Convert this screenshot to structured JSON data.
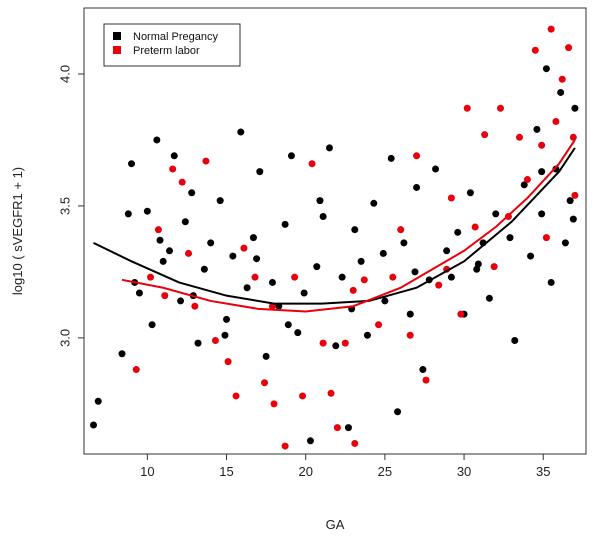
{
  "chart_data": {
    "type": "scatter",
    "title": "",
    "xlabel": "GA",
    "ylabel": "log10 ( sVEGFR1  + 1)",
    "xlim": [
      6,
      37.7
    ],
    "ylim": [
      2.56,
      4.25
    ],
    "x_ticks": [
      10,
      15,
      20,
      25,
      30,
      35
    ],
    "y_ticks": [
      3.0,
      3.5,
      4.0
    ],
    "x_tick_labels": [
      "10",
      "15",
      "20",
      "25",
      "30",
      "35"
    ],
    "y_tick_labels": [
      "3.0",
      "3.5",
      "4.0"
    ],
    "grid": false,
    "legend_position": "top-left",
    "series": [
      {
        "name": "Normal Pregancy",
        "color": "#000000",
        "points": [
          [
            6.6,
            2.67
          ],
          [
            6.9,
            2.76
          ],
          [
            8.4,
            2.94
          ],
          [
            8.8,
            3.47
          ],
          [
            9.0,
            3.66
          ],
          [
            9.5,
            3.17
          ],
          [
            10.0,
            3.48
          ],
          [
            10.3,
            3.05
          ],
          [
            10.6,
            3.75
          ],
          [
            11.0,
            3.29
          ],
          [
            11.4,
            3.33
          ],
          [
            11.7,
            3.69
          ],
          [
            12.1,
            3.14
          ],
          [
            12.4,
            3.44
          ],
          [
            12.8,
            3.55
          ],
          [
            13.2,
            2.98
          ],
          [
            13.6,
            3.26
          ],
          [
            14.0,
            3.36
          ],
          [
            14.6,
            3.52
          ],
          [
            15.0,
            3.07
          ],
          [
            15.4,
            3.31
          ],
          [
            15.9,
            3.78
          ],
          [
            16.3,
            3.19
          ],
          [
            16.7,
            3.38
          ],
          [
            17.1,
            3.63
          ],
          [
            17.5,
            2.93
          ],
          [
            17.9,
            3.21
          ],
          [
            18.3,
            3.12
          ],
          [
            18.7,
            3.43
          ],
          [
            19.1,
            3.69
          ],
          [
            19.5,
            3.02
          ],
          [
            19.9,
            3.17
          ],
          [
            20.3,
            2.61
          ],
          [
            20.7,
            3.27
          ],
          [
            21.1,
            3.46
          ],
          [
            21.5,
            3.72
          ],
          [
            21.9,
            2.97
          ],
          [
            22.3,
            3.23
          ],
          [
            22.7,
            2.66
          ],
          [
            23.1,
            3.41
          ],
          [
            23.5,
            3.29
          ],
          [
            23.9,
            3.01
          ],
          [
            24.3,
            3.51
          ],
          [
            25.0,
            3.14
          ],
          [
            25.4,
            3.68
          ],
          [
            25.8,
            2.72
          ],
          [
            26.2,
            3.36
          ],
          [
            26.6,
            3.09
          ],
          [
            27.0,
            3.57
          ],
          [
            27.4,
            2.88
          ],
          [
            27.8,
            3.22
          ],
          [
            28.2,
            3.64
          ],
          [
            29.2,
            3.23
          ],
          [
            29.6,
            3.4
          ],
          [
            30.0,
            3.09
          ],
          [
            30.4,
            3.55
          ],
          [
            30.8,
            3.26
          ],
          [
            31.2,
            3.36
          ],
          [
            31.6,
            3.15
          ],
          [
            32.0,
            3.47
          ],
          [
            33.2,
            2.99
          ],
          [
            33.8,
            3.58
          ],
          [
            34.2,
            3.31
          ],
          [
            34.6,
            3.79
          ],
          [
            34.9,
            3.47
          ],
          [
            35.2,
            4.02
          ],
          [
            35.5,
            3.21
          ],
          [
            35.8,
            3.64
          ],
          [
            36.1,
            3.93
          ],
          [
            36.4,
            3.36
          ],
          [
            36.7,
            3.52
          ],
          [
            37.0,
            3.87
          ],
          [
            9.2,
            3.21
          ],
          [
            10.8,
            3.37
          ],
          [
            12.9,
            3.16
          ],
          [
            14.9,
            3.01
          ],
          [
            16.9,
            3.3
          ],
          [
            18.9,
            3.05
          ],
          [
            20.9,
            3.52
          ],
          [
            22.9,
            3.11
          ],
          [
            24.9,
            3.32
          ],
          [
            26.9,
            3.25
          ],
          [
            28.9,
            3.33
          ],
          [
            30.9,
            3.28
          ],
          [
            32.9,
            3.38
          ],
          [
            34.9,
            3.63
          ],
          [
            36.9,
            3.45
          ]
        ]
      },
      {
        "name": "Preterm labor",
        "color": "#e8000b",
        "points": [
          [
            9.3,
            2.88
          ],
          [
            10.2,
            3.23
          ],
          [
            11.1,
            3.16
          ],
          [
            11.6,
            3.64
          ],
          [
            12.2,
            3.59
          ],
          [
            13.0,
            3.12
          ],
          [
            13.7,
            3.67
          ],
          [
            14.3,
            2.99
          ],
          [
            15.1,
            2.91
          ],
          [
            15.6,
            2.78
          ],
          [
            16.1,
            3.34
          ],
          [
            16.8,
            3.23
          ],
          [
            17.4,
            2.83
          ],
          [
            18.0,
            2.75
          ],
          [
            18.7,
            2.59
          ],
          [
            19.3,
            3.23
          ],
          [
            19.8,
            2.78
          ],
          [
            20.4,
            3.66
          ],
          [
            21.1,
            2.98
          ],
          [
            21.6,
            2.79
          ],
          [
            22.0,
            2.66
          ],
          [
            22.5,
            2.98
          ],
          [
            23.1,
            2.6
          ],
          [
            23.7,
            3.22
          ],
          [
            24.6,
            3.05
          ],
          [
            25.5,
            3.23
          ],
          [
            26.0,
            3.41
          ],
          [
            26.6,
            3.01
          ],
          [
            27.0,
            3.69
          ],
          [
            27.6,
            2.84
          ],
          [
            28.4,
            3.2
          ],
          [
            29.2,
            3.53
          ],
          [
            29.8,
            3.09
          ],
          [
            30.2,
            3.87
          ],
          [
            30.7,
            3.42
          ],
          [
            31.3,
            3.77
          ],
          [
            31.9,
            3.27
          ],
          [
            32.3,
            3.87
          ],
          [
            33.5,
            3.76
          ],
          [
            34.0,
            3.6
          ],
          [
            34.5,
            4.09
          ],
          [
            34.9,
            3.73
          ],
          [
            35.2,
            3.38
          ],
          [
            35.5,
            4.17
          ],
          [
            35.8,
            3.82
          ],
          [
            36.2,
            3.98
          ],
          [
            36.6,
            4.1
          ],
          [
            37.0,
            3.54
          ],
          [
            36.9,
            3.76
          ],
          [
            10.7,
            3.41
          ],
          [
            12.6,
            3.32
          ],
          [
            17.9,
            3.12
          ],
          [
            23.0,
            3.18
          ],
          [
            28.9,
            3.26
          ],
          [
            32.8,
            3.46
          ]
        ]
      }
    ],
    "fit_lines": [
      {
        "color": "#000000",
        "points": [
          [
            6.6,
            3.36
          ],
          [
            9.0,
            3.29
          ],
          [
            12.0,
            3.21
          ],
          [
            15.0,
            3.16
          ],
          [
            18.0,
            3.13
          ],
          [
            21.0,
            3.13
          ],
          [
            24.0,
            3.14
          ],
          [
            27.0,
            3.19
          ],
          [
            30.0,
            3.29
          ],
          [
            33.0,
            3.44
          ],
          [
            36.0,
            3.63
          ],
          [
            37.0,
            3.72
          ]
        ]
      },
      {
        "color": "#e8000b",
        "points": [
          [
            8.4,
            3.22
          ],
          [
            11.0,
            3.19
          ],
          [
            14.0,
            3.14
          ],
          [
            17.0,
            3.11
          ],
          [
            20.0,
            3.1
          ],
          [
            23.0,
            3.12
          ],
          [
            26.0,
            3.19
          ],
          [
            28.0,
            3.26
          ],
          [
            30.0,
            3.33
          ],
          [
            32.0,
            3.42
          ],
          [
            34.0,
            3.53
          ],
          [
            36.0,
            3.66
          ],
          [
            37.0,
            3.75
          ]
        ]
      }
    ]
  }
}
